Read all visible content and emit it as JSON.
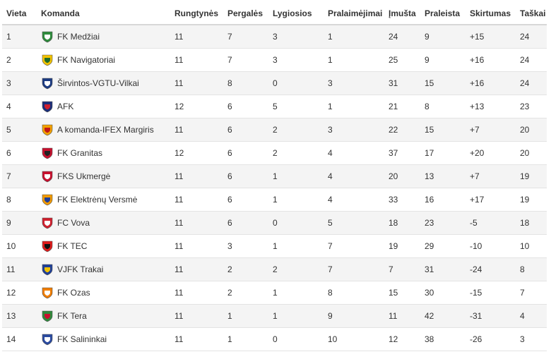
{
  "headers": {
    "position": "Vieta",
    "team": "Komanda",
    "played": "Rungtynės",
    "wins": "Pergalės",
    "draws": "Lygiosios",
    "losses": "Pralaimėjimai",
    "scored": "Įmušta",
    "conceded": "Praleista",
    "diff": "Skirtumas",
    "points": "Taškai"
  },
  "rows": [
    {
      "pos": "1",
      "team": "FK Medžiai",
      "logo": "medziai-logo",
      "colors": [
        "#2e8b3c",
        "#ffffff"
      ],
      "played": "11",
      "w": "7",
      "d": "3",
      "l": "1",
      "gf": "24",
      "ga": "9",
      "diff": "+15",
      "pts": "24"
    },
    {
      "pos": "2",
      "team": "FK Navigatoriai",
      "logo": "navigatoriai-logo",
      "colors": [
        "#f2c200",
        "#1f6b2a"
      ],
      "played": "11",
      "w": "7",
      "d": "3",
      "l": "1",
      "gf": "25",
      "ga": "9",
      "diff": "+16",
      "pts": "24"
    },
    {
      "pos": "3",
      "team": "Širvintos-VGTU-Vilkai",
      "logo": "sirvintos-logo",
      "colors": [
        "#1c3b82",
        "#ffffff"
      ],
      "played": "11",
      "w": "8",
      "d": "0",
      "l": "3",
      "gf": "31",
      "ga": "15",
      "diff": "+16",
      "pts": "24"
    },
    {
      "pos": "4",
      "team": "AFK",
      "logo": "afk-logo",
      "colors": [
        "#1b2f7a",
        "#d0202e"
      ],
      "played": "12",
      "w": "6",
      "d": "5",
      "l": "1",
      "gf": "21",
      "ga": "8",
      "diff": "+13",
      "pts": "23"
    },
    {
      "pos": "5",
      "team": "A komanda-IFEX Margiris",
      "logo": "margiris-logo",
      "colors": [
        "#f2a100",
        "#c01818"
      ],
      "played": "11",
      "w": "6",
      "d": "2",
      "l": "3",
      "gf": "22",
      "ga": "15",
      "diff": "+7",
      "pts": "20"
    },
    {
      "pos": "6",
      "team": "FK Granitas",
      "logo": "granitas-logo",
      "colors": [
        "#c8102e",
        "#222222"
      ],
      "played": "12",
      "w": "6",
      "d": "2",
      "l": "4",
      "gf": "37",
      "ga": "17",
      "diff": "+20",
      "pts": "20"
    },
    {
      "pos": "7",
      "team": "FKS Ukmergė",
      "logo": "ukmerge-logo",
      "colors": [
        "#c8102e",
        "#ffffff"
      ],
      "played": "11",
      "w": "6",
      "d": "1",
      "l": "4",
      "gf": "20",
      "ga": "13",
      "diff": "+7",
      "pts": "19"
    },
    {
      "pos": "8",
      "team": "FK Elektrėnų Versmė",
      "logo": "versme-logo",
      "colors": [
        "#f29a00",
        "#1f3f99"
      ],
      "played": "11",
      "w": "6",
      "d": "1",
      "l": "4",
      "gf": "33",
      "ga": "16",
      "diff": "+17",
      "pts": "19"
    },
    {
      "pos": "9",
      "team": "FC Vova",
      "logo": "vova-logo",
      "colors": [
        "#d0202e",
        "#ffffff"
      ],
      "played": "11",
      "w": "6",
      "d": "0",
      "l": "5",
      "gf": "18",
      "ga": "23",
      "diff": "-5",
      "pts": "18"
    },
    {
      "pos": "10",
      "team": "FK TEC",
      "logo": "tec-logo",
      "colors": [
        "#e01b1b",
        "#111111"
      ],
      "played": "11",
      "w": "3",
      "d": "1",
      "l": "7",
      "gf": "19",
      "ga": "29",
      "diff": "-10",
      "pts": "10"
    },
    {
      "pos": "11",
      "team": "VJFK Trakai",
      "logo": "trakai-logo",
      "colors": [
        "#1f3f99",
        "#f2c200"
      ],
      "played": "11",
      "w": "2",
      "d": "2",
      "l": "7",
      "gf": "7",
      "ga": "31",
      "diff": "-24",
      "pts": "8"
    },
    {
      "pos": "12",
      "team": "FK Ozas",
      "logo": "ozas-logo",
      "colors": [
        "#f07d00",
        "#ffffff"
      ],
      "played": "11",
      "w": "2",
      "d": "1",
      "l": "8",
      "gf": "15",
      "ga": "30",
      "diff": "-15",
      "pts": "7"
    },
    {
      "pos": "13",
      "team": "FK Tera",
      "logo": "tera-logo",
      "colors": [
        "#2e8b3c",
        "#c8102e"
      ],
      "played": "11",
      "w": "1",
      "d": "1",
      "l": "9",
      "gf": "11",
      "ga": "42",
      "diff": "-31",
      "pts": "4"
    },
    {
      "pos": "14",
      "team": "FK Salininkai",
      "logo": "salininkai-logo",
      "colors": [
        "#2a4aa0",
        "#ffffff"
      ],
      "played": "11",
      "w": "1",
      "d": "0",
      "l": "10",
      "gf": "12",
      "ga": "38",
      "diff": "-26",
      "pts": "3"
    }
  ]
}
